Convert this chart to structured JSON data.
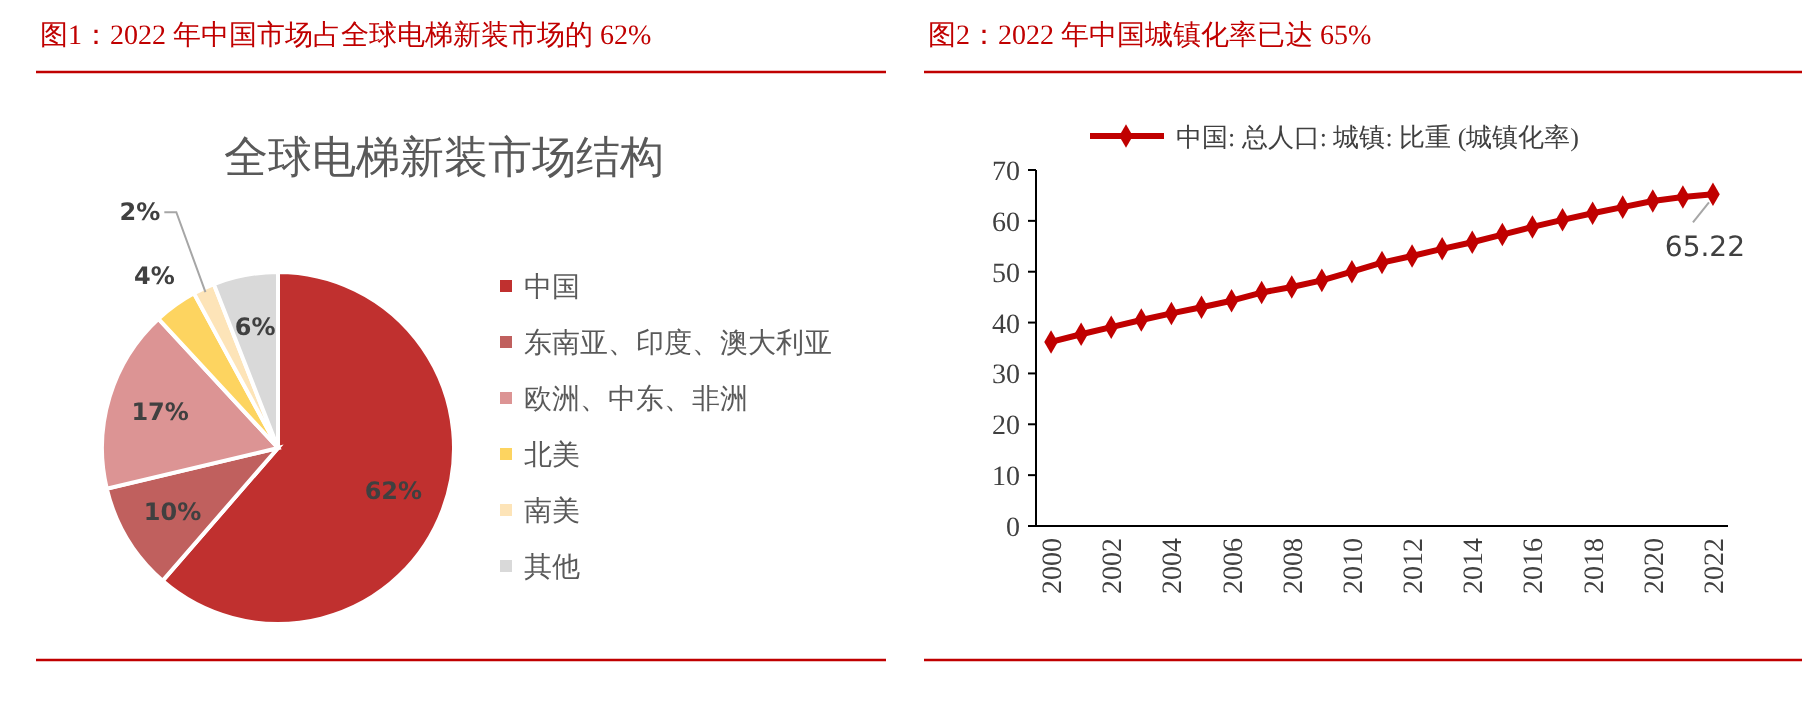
{
  "chart_data": [
    {
      "type": "pie",
      "title": "图1：2022 年中国市场占全球电梯新装市场的 62%",
      "subtitle": "全球电梯新装市场结构",
      "categories": [
        "中国",
        "东南亚、印度、澳大利亚",
        "欧洲、中东、非洲",
        "北美",
        "南美",
        "其他"
      ],
      "values": [
        62,
        10,
        17,
        4,
        2,
        6
      ],
      "colors": [
        "#c0302f",
        "#c0605e",
        "#dc9494",
        "#fdd460",
        "#fde4b8",
        "#d9d9d9"
      ],
      "value_labels": [
        "62%",
        "10%",
        "17%",
        "4%",
        "2%",
        "6%"
      ],
      "legend": "right"
    },
    {
      "type": "line",
      "title": "图2：2022 年中国城镇化率已达 65%",
      "categories": [
        "2000",
        null,
        "2002",
        null,
        "2004",
        null,
        "2006",
        null,
        "2008",
        null,
        "2010",
        null,
        "2012",
        null,
        "2014",
        null,
        "2016",
        null,
        "2018",
        null,
        "2020",
        null,
        "2022"
      ],
      "series": [
        {
          "name": "中国: 总人口: 城镇: 比重 (城镇化率)",
          "color": "#c00000",
          "values": [
            36.2,
            37.7,
            39.1,
            40.5,
            41.8,
            43.0,
            44.3,
            45.9,
            47.0,
            48.3,
            50.0,
            51.8,
            53.1,
            54.5,
            55.8,
            57.3,
            58.8,
            60.2,
            61.5,
            62.7,
            63.9,
            64.7,
            65.22
          ]
        }
      ],
      "ylim": [
        0,
        70
      ],
      "yticks": [
        0,
        10,
        20,
        30,
        40,
        50,
        60,
        70
      ],
      "marker": "diamond",
      "line_style": "solid",
      "legend": "top",
      "grid": false,
      "annotations": [
        {
          "text": "65.22",
          "x": "2022",
          "y": 65.22
        }
      ]
    }
  ]
}
